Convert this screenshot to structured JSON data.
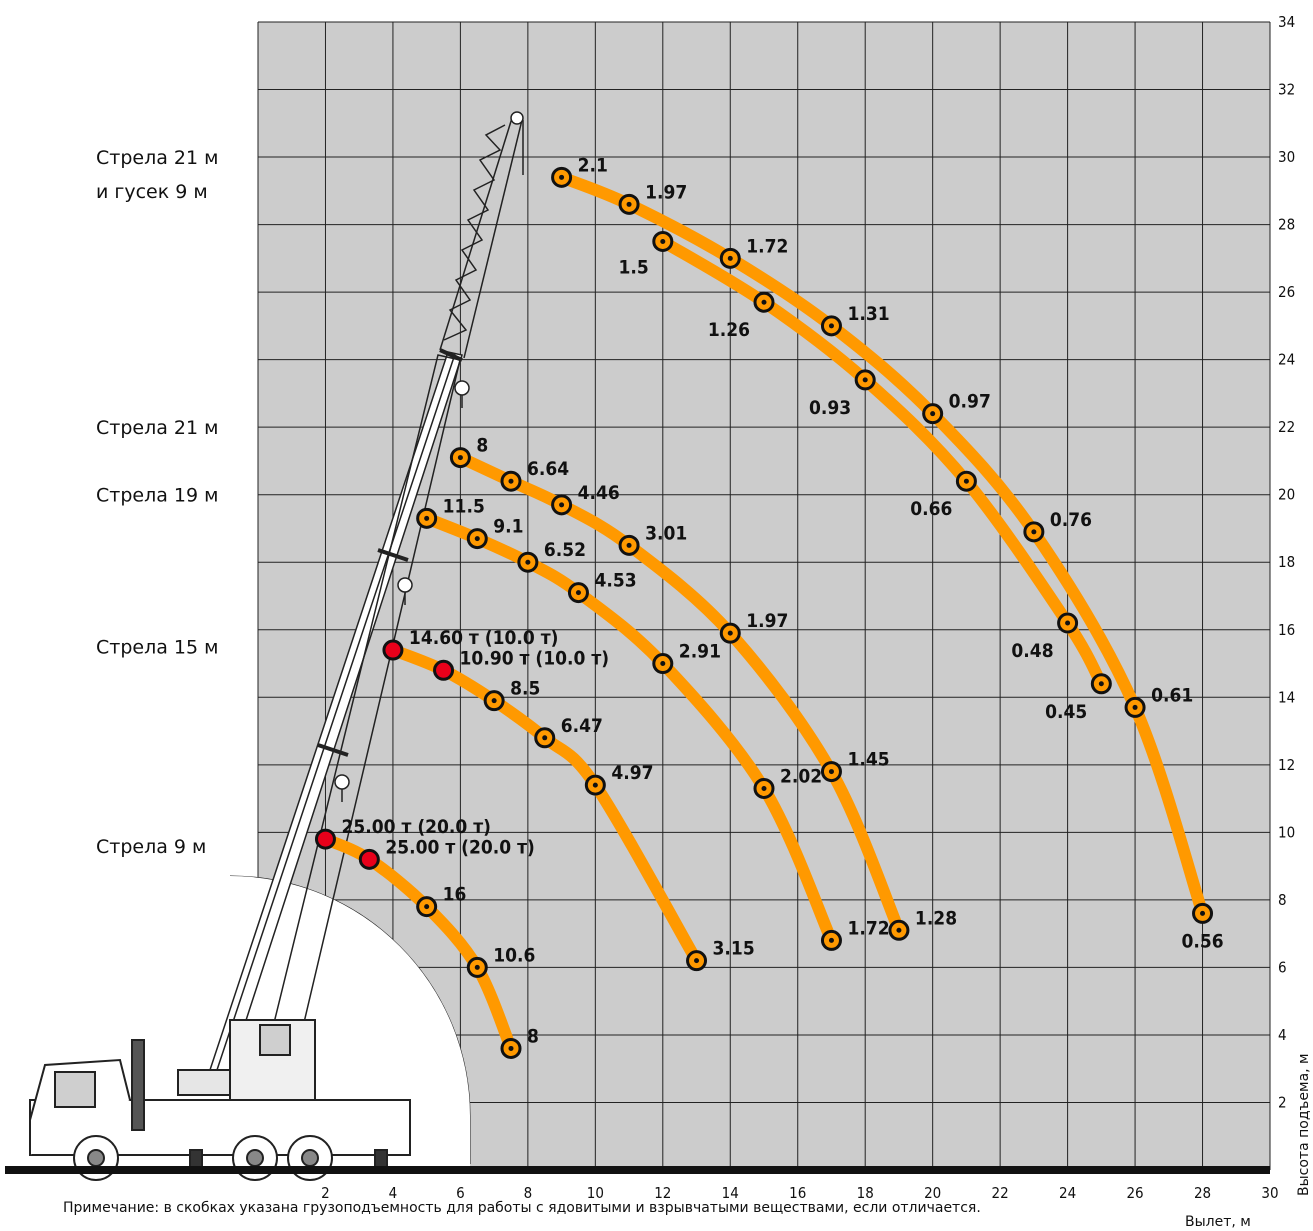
{
  "chart_data": {
    "type": "line",
    "xlabel": "Вылет, м",
    "ylabel": "Высота подъема, м",
    "xlim": [
      0,
      30
    ],
    "ylim": [
      0,
      34
    ],
    "x_ticks": [
      "2",
      "4",
      "6",
      "8",
      "10",
      "12",
      "14",
      "16",
      "18",
      "20",
      "22",
      "24",
      "26",
      "28",
      "30"
    ],
    "y_ticks": [
      "2",
      "4",
      "6",
      "8",
      "10",
      "12",
      "14",
      "16",
      "18",
      "20",
      "22",
      "24",
      "26",
      "28",
      "30",
      "32",
      "34"
    ],
    "grid": true,
    "note": "Примечание: в скобках указана грузоподъемность для работы с ядовитыми и взрывчатыми веществами, если отличается.",
    "boom_labels": [
      {
        "text": "Стрела 21 м",
        "y": 30
      },
      {
        "text": "и гусек 9 м",
        "y": 29
      },
      {
        "text": "Стрела 21 м",
        "y": 22
      },
      {
        "text": "Стрела 19 м",
        "y": 20
      },
      {
        "text": "Стрела 15 м",
        "y": 15.5
      },
      {
        "text": "Стрела 9 м",
        "y": 9.6
      }
    ],
    "colors": {
      "curve": "#ff9900",
      "marker_normal": "#ff9900",
      "marker_highlight": "#e8001a",
      "grid_bg": "#cccccc"
    },
    "series": [
      {
        "points": [
          {
            "x": 2,
            "y": 9.8,
            "label": "25.00 т (20.0 т)",
            "red": true
          },
          {
            "x": 3.3,
            "y": 9.2,
            "label": "25.00 т (20.0 т)",
            "red": true
          },
          {
            "x": 5,
            "y": 7.8,
            "label": "16"
          },
          {
            "x": 6.5,
            "y": 6,
            "label": "10.6"
          },
          {
            "x": 7.5,
            "y": 3.6,
            "label": "8"
          }
        ]
      },
      {
        "points": [
          {
            "x": 4,
            "y": 15.4,
            "label": "14.60 т (10.0 т)",
            "red": true
          },
          {
            "x": 5.5,
            "y": 14.8,
            "label": "10.90 т (10.0 т)",
            "red": true
          },
          {
            "x": 7,
            "y": 13.9,
            "label": "8.5"
          },
          {
            "x": 8.5,
            "y": 12.8,
            "label": "6.47"
          },
          {
            "x": 10,
            "y": 11.4,
            "label": "4.97"
          },
          {
            "x": 13,
            "y": 6.2,
            "label": "3.15"
          }
        ]
      },
      {
        "points": [
          {
            "x": 5,
            "y": 19.3,
            "label": "11.5"
          },
          {
            "x": 6.5,
            "y": 18.7,
            "label": "9.1"
          },
          {
            "x": 8,
            "y": 18,
            "label": "6.52"
          },
          {
            "x": 9.5,
            "y": 17.1,
            "label": "4.53"
          },
          {
            "x": 12,
            "y": 15,
            "label": "2.91"
          },
          {
            "x": 15,
            "y": 11.3,
            "label": "2.02"
          },
          {
            "x": 17,
            "y": 6.8,
            "label": "1.72"
          }
        ]
      },
      {
        "points": [
          {
            "x": 6,
            "y": 21.1,
            "label": "8"
          },
          {
            "x": 7.5,
            "y": 20.4,
            "label": "6.64"
          },
          {
            "x": 9,
            "y": 19.7,
            "label": "4.46"
          },
          {
            "x": 11,
            "y": 18.5,
            "label": "3.01"
          },
          {
            "x": 14,
            "y": 15.9,
            "label": "1.97"
          },
          {
            "x": 17,
            "y": 11.8,
            "label": "1.45"
          },
          {
            "x": 19,
            "y": 7.1,
            "label": "1.28"
          }
        ]
      },
      {
        "points": [
          {
            "x": 12,
            "y": 27.5,
            "label": "1.5"
          },
          {
            "x": 15,
            "y": 25.7,
            "label": "1.26"
          },
          {
            "x": 18,
            "y": 23.4,
            "label": "0.93"
          },
          {
            "x": 21,
            "y": 20.4,
            "label": "0.66"
          },
          {
            "x": 24,
            "y": 16.2,
            "label": "0.48"
          },
          {
            "x": 25,
            "y": 14.4,
            "label": "0.45"
          }
        ]
      },
      {
        "points": [
          {
            "x": 9,
            "y": 29.4,
            "label": "2.1"
          },
          {
            "x": 11,
            "y": 28.6,
            "label": "1.97"
          },
          {
            "x": 14,
            "y": 27,
            "label": "1.72"
          },
          {
            "x": 17,
            "y": 25,
            "label": "1.31"
          },
          {
            "x": 20,
            "y": 22.4,
            "label": "0.97"
          },
          {
            "x": 23,
            "y": 18.9,
            "label": "0.76"
          },
          {
            "x": 26,
            "y": 13.7,
            "label": "0.61"
          },
          {
            "x": 28,
            "y": 7.6,
            "label": "0.56"
          }
        ]
      }
    ]
  }
}
